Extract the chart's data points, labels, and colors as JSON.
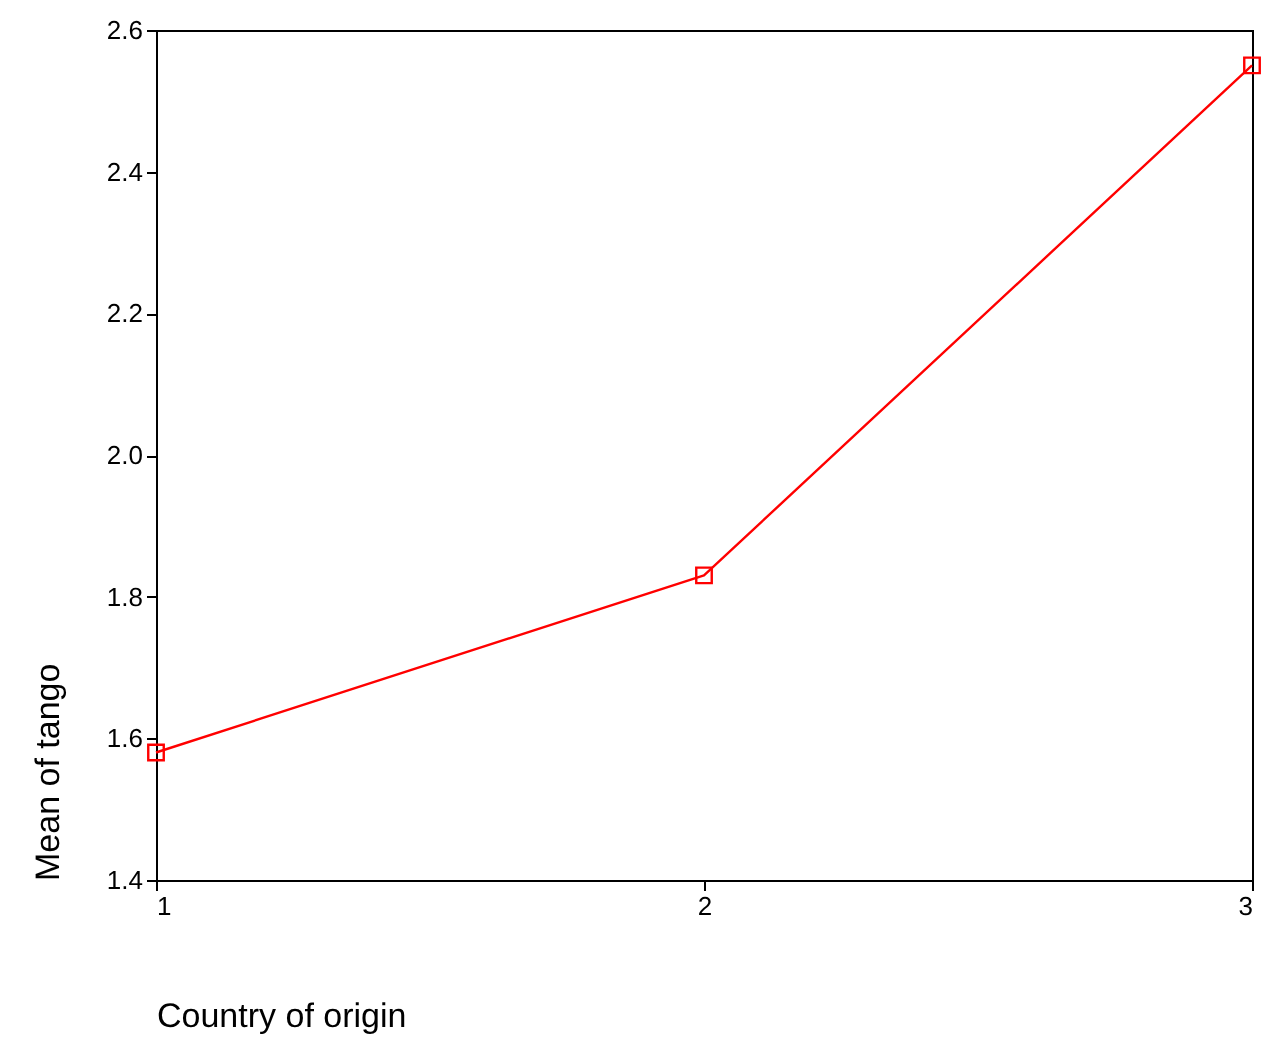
{
  "chart_data": {
    "type": "line",
    "xlabel": "Country of origin",
    "ylabel": "Mean of tango",
    "x": [
      1,
      2,
      3
    ],
    "series": [
      {
        "color": "#ff0000",
        "values": [
          1.58,
          1.83,
          2.55
        ]
      }
    ],
    "xlim": [
      1,
      3
    ],
    "xticks": [
      1,
      2,
      3
    ],
    "ylim": [
      1.4,
      2.6
    ],
    "yticks": [
      {
        "value": 1.4,
        "label": "1.4"
      },
      {
        "value": 1.6,
        "label": "1.6"
      },
      {
        "value": 1.8,
        "label": "1.8"
      },
      {
        "value": 2.0,
        "label": "2.0"
      },
      {
        "value": 2.2,
        "label": "2.2"
      },
      {
        "value": 2.4,
        "label": "2.4"
      },
      {
        "value": 2.6,
        "label": "2.6"
      }
    ],
    "grid": false,
    "marker": "square",
    "line_style": "solid"
  }
}
